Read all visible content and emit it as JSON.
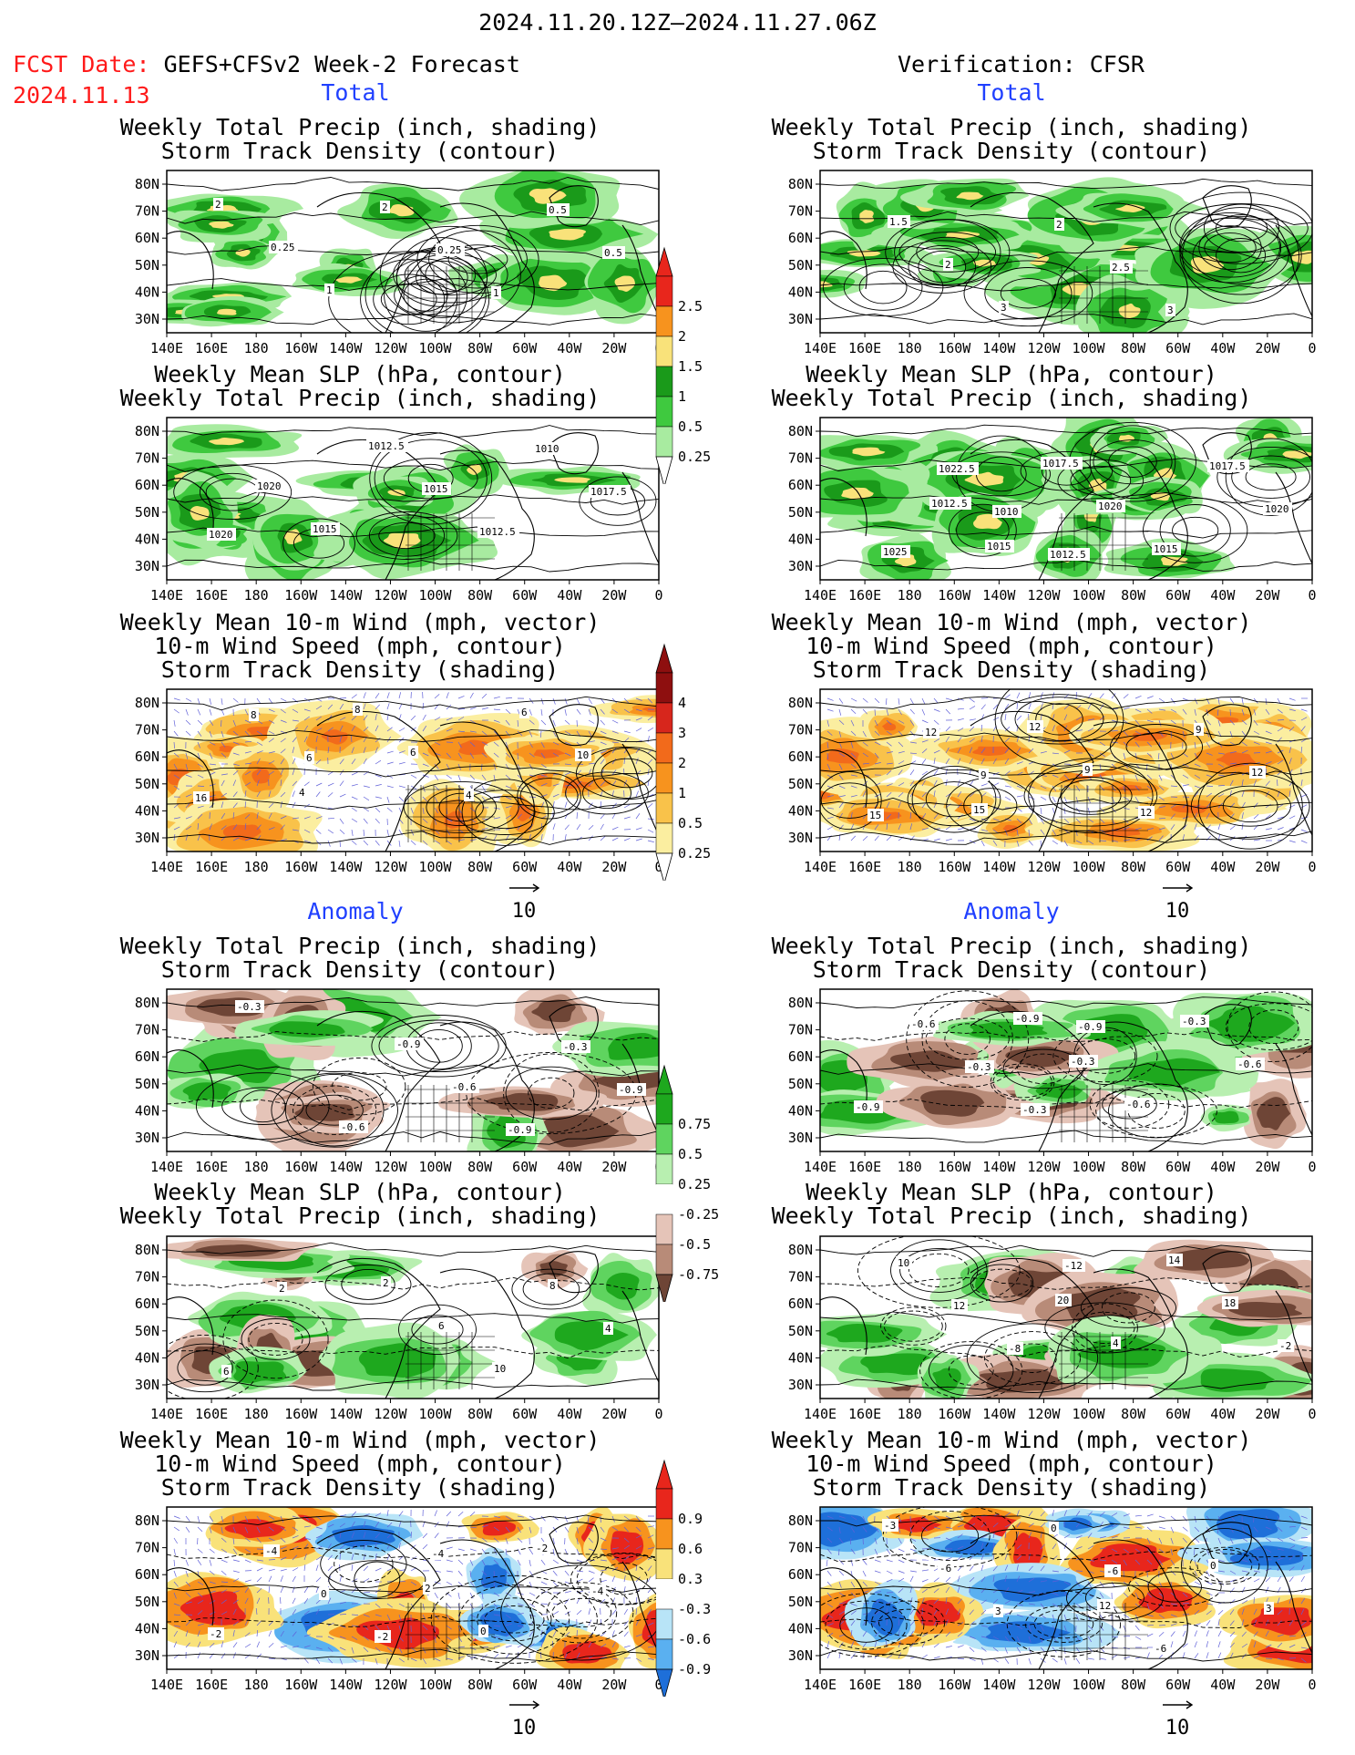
{
  "header": {
    "period": "2024.11.20.12Z–2024.11.27.06Z",
    "fcst_label": "FCST Date:",
    "fcst_model": "GEFS+CFSv2 Week-2 Forecast",
    "fcst_date": "2024.11.13",
    "verification": "Verification: CFSR"
  },
  "sections": {
    "total": "Total",
    "anomaly": "Anomaly"
  },
  "panel_titles": {
    "precip_track": [
      "Weekly Total Precip (inch, shading)",
      "Storm Track Density (contour)"
    ],
    "slp_precip": [
      "Weekly Mean SLP (hPa, contour)",
      "Weekly Total Precip (inch, shading)"
    ],
    "wind_track": [
      "Weekly Mean 10-m Wind (mph, vector)",
      "10-m Wind Speed (mph, contour)",
      "Storm Track Density (shading)"
    ]
  },
  "axes": {
    "lat_ticks": [
      "80N",
      "70N",
      "60N",
      "50N",
      "40N",
      "30N"
    ],
    "lon_ticks": [
      "140E",
      "160E",
      "180",
      "160W",
      "140W",
      "120W",
      "100W",
      "80W",
      "60W",
      "40W",
      "20W",
      "0"
    ]
  },
  "vector_ref": "10",
  "colorbars": {
    "precip_total": {
      "labels": [
        "2.5",
        "2",
        "1.5",
        "1",
        "0.5",
        "0.25"
      ],
      "colors": [
        "#e8261c",
        "#f7931e",
        "#f9e27a",
        "#1a9a1a",
        "#3fc93f",
        "#a8eba0"
      ]
    },
    "track_total": {
      "labels": [
        "4",
        "3",
        "2",
        "1",
        "0.5",
        "0.25"
      ],
      "colors": [
        "#8e0f0f",
        "#d7261c",
        "#f26a1b",
        "#f7931e",
        "#f9c24a",
        "#fbeea0"
      ]
    },
    "precip_anom": {
      "labels": [
        "0.75",
        "0.5",
        "0.25",
        "-0.25",
        "-0.5",
        "-0.75"
      ],
      "colors": [
        "#1ea81e",
        "#5fd45f",
        "#b8efb0",
        "#e5c4b8",
        "#b88b78",
        "#6e4536"
      ]
    },
    "track_anom": {
      "labels": [
        "0.9",
        "0.6",
        "0.3",
        "-0.3",
        "-0.6",
        "-0.9"
      ],
      "colors": [
        "#e8261c",
        "#f7931e",
        "#f9e27a",
        "#b8e4f7",
        "#5ab0f0",
        "#1e6fd9"
      ]
    }
  },
  "panels": {
    "fc_total_precip": {
      "contour_labels": [
        "2",
        "0.25",
        "1",
        "2",
        "0.25",
        "1",
        "0.5",
        "0.5"
      ]
    },
    "vf_total_precip": {
      "contour_labels": [
        "1.5",
        "2",
        "3",
        "2",
        "2.5",
        "3"
      ]
    },
    "fc_total_slp": {
      "contour_labels": [
        "1020",
        "1015",
        "1012.5",
        "1015",
        "1012.5",
        "1010",
        "1017.5",
        "1020"
      ]
    },
    "vf_total_slp": {
      "contour_labels": [
        "1012.5",
        "1015",
        "1017.5",
        "1020",
        "1015",
        "1017.5",
        "1020",
        "1025",
        "1022.5",
        "1010",
        "1012.5"
      ]
    },
    "fc_total_wind": {
      "contour_labels": [
        "4",
        "8",
        "6",
        "4",
        "6",
        "10",
        "16",
        "8",
        "6"
      ]
    },
    "vf_total_wind": {
      "contour_labels": [
        "15",
        "12",
        "9",
        "12",
        "9",
        "12",
        "15",
        "12",
        "9"
      ]
    },
    "fc_anom_precip": {
      "contour_labels": [
        "-0.6",
        "-0.9",
        "-0.6",
        "-0.9",
        "-0.3",
        "-0.9",
        "-0.3"
      ]
    },
    "vf_anom_precip": {
      "contour_labels": [
        "-0.9",
        "-0.3",
        "-0.6",
        "-0.3",
        "-0.6",
        "-0.9",
        "-0.6",
        "-0.3",
        "-0.3",
        "-0.9"
      ]
    },
    "fc_anom_slp": {
      "contour_labels": [
        "2",
        "6",
        "10",
        "8",
        "4",
        "6",
        "2"
      ]
    },
    "vf_anom_slp": {
      "contour_labels": [
        "20",
        "4",
        "14",
        "18",
        "-2",
        "10",
        "12",
        "-8",
        "-12"
      ]
    },
    "fc_anom_wind": {
      "contour_labels": [
        "2",
        "0",
        "-2",
        "-4",
        "-2",
        "-4",
        "0",
        "-2",
        "-4"
      ]
    },
    "vf_anom_wind": {
      "contour_labels": [
        "12",
        "-6",
        "0",
        "3",
        "-3",
        "-6",
        "3",
        "0",
        "-6"
      ]
    }
  }
}
